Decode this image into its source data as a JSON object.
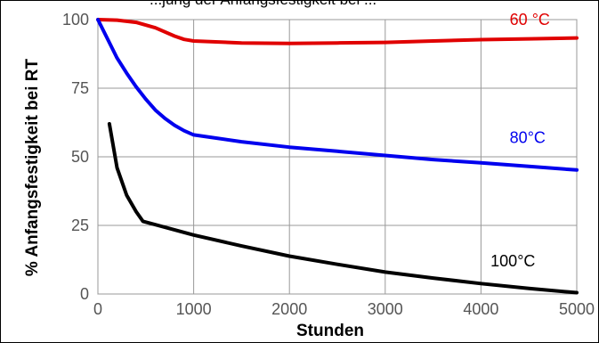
{
  "chart_data": {
    "type": "line",
    "title_fragment": "...jung der Anfangsfestigkeit bei ...",
    "xlabel": "Stunden",
    "ylabel": "% Anfangsfestigkeit bei RT",
    "xlim": [
      0,
      5000
    ],
    "ylim": [
      0,
      100
    ],
    "xticks": [
      0,
      1000,
      2000,
      3000,
      4000,
      5000
    ],
    "yticks": [
      0,
      25,
      50,
      75,
      100
    ],
    "grid": true,
    "series": [
      {
        "name": "60 °C",
        "color": "#e00000",
        "x": [
          0,
          200,
          400,
          600,
          800,
          900,
          1000,
          1500,
          2000,
          2500,
          3000,
          3500,
          4000,
          4500,
          5000
        ],
        "y": [
          100,
          99.8,
          99,
          97,
          94,
          92.8,
          92.2,
          91.5,
          91.3,
          91.5,
          91.7,
          92.2,
          92.7,
          93,
          93.3
        ]
      },
      {
        "name": "80°C",
        "color": "#0000ee",
        "x": [
          0,
          100,
          200,
          300,
          400,
          500,
          600,
          700,
          800,
          900,
          1000,
          1500,
          2000,
          2500,
          3000,
          3500,
          4000,
          4500,
          5000
        ],
        "y": [
          100,
          93,
          86,
          80.5,
          75.5,
          71,
          67,
          64,
          61.5,
          59.5,
          58,
          55.5,
          53.5,
          52,
          50.5,
          49,
          47.8,
          46.5,
          45.2
        ]
      },
      {
        "name": "100°C",
        "color": "#000000",
        "x": [
          120,
          200,
          300,
          400,
          470,
          1000,
          1500,
          2000,
          2500,
          3000,
          3500,
          4000,
          4500,
          5000
        ],
        "y": [
          62,
          46,
          36,
          30,
          26.5,
          21.5,
          17.5,
          13.8,
          10.8,
          8,
          5.8,
          3.8,
          2,
          0.5
        ]
      }
    ],
    "series_labels": [
      {
        "text": "60 °C",
        "x": 4300,
        "y": 98
      },
      {
        "text": "80°C",
        "x": 4300,
        "y": 55
      },
      {
        "text": "100°C",
        "x": 4100,
        "y": 10
      }
    ]
  }
}
